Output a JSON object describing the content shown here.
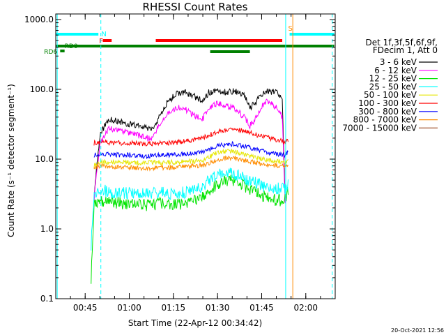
{
  "chart_data": {
    "type": "line",
    "title": "RHESSI Count Rates",
    "xlabel": "Start Time (22-Apr-12 00:34:42)",
    "ylabel": "Count Rate (s⁻¹ detector segment⁻¹)",
    "y_scale": "log",
    "ylim": [
      0.1,
      1000.0
    ],
    "xlim": [
      "00:35:00",
      "02:10:00"
    ],
    "x_tick_labels": [
      "00:45",
      "01:00",
      "01:15",
      "01:30",
      "01:45",
      "02:00"
    ],
    "y_tick_labels": [
      "0.1",
      "1.0",
      "10.0",
      "100.0",
      "1000.0"
    ],
    "grid": false,
    "legend_placement": "right",
    "legend_header": [
      "Det 1f,3f,5f,6f,9f,",
      "FDecim 1, Att 0"
    ],
    "series": [
      {
        "name": "3 - 6 keV",
        "color": "#000000",
        "x": [
          "00:48",
          "00:50",
          "00:53",
          "00:56",
          "01:00",
          "01:03",
          "01:06",
          "01:08",
          "01:10",
          "01:13",
          "01:16",
          "01:19",
          "01:22",
          "01:25",
          "01:27",
          "01:30",
          "01:33",
          "01:36",
          "01:39",
          "01:41",
          "01:43",
          "01:45",
          "01:47",
          "01:50",
          "01:52",
          "01:53"
        ],
        "y": [
          2.8,
          22,
          38,
          35,
          32,
          30,
          28,
          26,
          38,
          66,
          86,
          90,
          80,
          68,
          90,
          95,
          92,
          95,
          82,
          55,
          65,
          85,
          95,
          90,
          70,
          2.5
        ]
      },
      {
        "name": "6 - 12 keV",
        "color": "#ff00ff",
        "x": [
          "00:48",
          "00:50",
          "00:53",
          "00:56",
          "01:00",
          "01:03",
          "01:06",
          "01:08",
          "01:10",
          "01:13",
          "01:16",
          "01:19",
          "01:22",
          "01:25",
          "01:27",
          "01:30",
          "01:33",
          "01:36",
          "01:39",
          "01:41",
          "01:43",
          "01:45",
          "01:47",
          "01:50",
          "01:52",
          "01:53"
        ],
        "y": [
          2.6,
          16,
          28,
          26,
          24,
          22,
          20,
          20,
          30,
          46,
          55,
          52,
          42,
          38,
          55,
          62,
          58,
          52,
          40,
          30,
          38,
          58,
          68,
          55,
          40,
          2.3
        ]
      },
      {
        "name": "12 - 25 keV",
        "color": "#00e400",
        "x": [
          "00:47",
          "00:48",
          "00:50",
          "00:55",
          "01:00",
          "01:05",
          "01:10",
          "01:15",
          "01:20",
          "01:25",
          "01:30",
          "01:35",
          "01:40",
          "01:45",
          "01:50",
          "01:53",
          "01:54"
        ],
        "y": [
          0.2,
          2.2,
          2.6,
          2.4,
          2.3,
          2.2,
          2.3,
          2.2,
          2.4,
          2.9,
          4.5,
          5.0,
          4.0,
          3.0,
          2.6,
          2.6,
          3.5
        ]
      },
      {
        "name": "25 - 50 keV",
        "color": "#00ffff",
        "x": [
          "00:47",
          "00:48",
          "00:50",
          "00:55",
          "01:00",
          "01:05",
          "01:10",
          "01:15",
          "01:20",
          "01:25",
          "01:30",
          "01:35",
          "01:40",
          "01:45",
          "01:50",
          "01:53",
          "01:54"
        ],
        "y": [
          0.6,
          3.2,
          3.6,
          3.3,
          3.3,
          3.1,
          3.3,
          3.2,
          3.4,
          4.2,
          6.0,
          6.4,
          5.2,
          4.2,
          3.8,
          3.8,
          4.5
        ]
      },
      {
        "name": "50 - 100 keV",
        "color": "#e6e600",
        "x": [
          "00:48",
          "00:50",
          "00:55",
          "01:00",
          "01:05",
          "01:10",
          "01:15",
          "01:20",
          "01:25",
          "01:30",
          "01:35",
          "01:40",
          "01:45",
          "01:50",
          "01:53",
          "01:54"
        ],
        "y": [
          8,
          9,
          9,
          9,
          8.8,
          9,
          9,
          9.2,
          9.5,
          12.5,
          13,
          11.5,
          10,
          9.5,
          9,
          10
        ]
      },
      {
        "name": "100 - 300 keV",
        "color": "#ff0000",
        "x": [
          "00:48",
          "00:50",
          "00:55",
          "01:00",
          "01:05",
          "01:10",
          "01:15",
          "01:20",
          "01:25",
          "01:30",
          "01:35",
          "01:40",
          "01:45",
          "01:50",
          "01:53",
          "01:54"
        ],
        "y": [
          17,
          17.5,
          17,
          17,
          16.5,
          17,
          17,
          18.5,
          20,
          25,
          27,
          25,
          21,
          19,
          17.5,
          19
        ]
      },
      {
        "name": "300 - 800 keV",
        "color": "#0000ff",
        "x": [
          "00:48",
          "00:50",
          "00:55",
          "01:00",
          "01:05",
          "01:10",
          "01:15",
          "01:20",
          "01:25",
          "01:30",
          "01:35",
          "01:40",
          "01:45",
          "01:50",
          "01:53",
          "01:54"
        ],
        "y": [
          11.5,
          12,
          11.5,
          11.5,
          11,
          11.5,
          11.5,
          12,
          12.5,
          15.5,
          16.5,
          15,
          13,
          12,
          11.5,
          12.5
        ]
      },
      {
        "name": "800 - 7000 keV",
        "color": "#ff8c00",
        "x": [
          "00:48",
          "00:50",
          "00:55",
          "01:00",
          "01:05",
          "01:10",
          "01:15",
          "01:20",
          "01:25",
          "01:30",
          "01:35",
          "01:40",
          "01:45",
          "01:50",
          "01:53",
          "01:54"
        ],
        "y": [
          7.8,
          8,
          7.6,
          7.6,
          7.3,
          7.6,
          7.6,
          7.8,
          8.2,
          9.8,
          10.5,
          9.5,
          8.5,
          8,
          7.8,
          8.5
        ]
      },
      {
        "name": "7000 - 15000 keV",
        "color": "#a0522d",
        "x": [],
        "y": []
      }
    ],
    "annotations": [
      {
        "label": "N",
        "color": "#00ffff"
      },
      {
        "label": "F",
        "color": "#ff0000"
      },
      {
        "label": "S",
        "color": "#ff8c00"
      },
      {
        "label": "RD0",
        "color": "#008000"
      },
      {
        "label": "RD6",
        "color": "#008000"
      }
    ],
    "timestamp": "20-Oct-2021 12:56"
  }
}
